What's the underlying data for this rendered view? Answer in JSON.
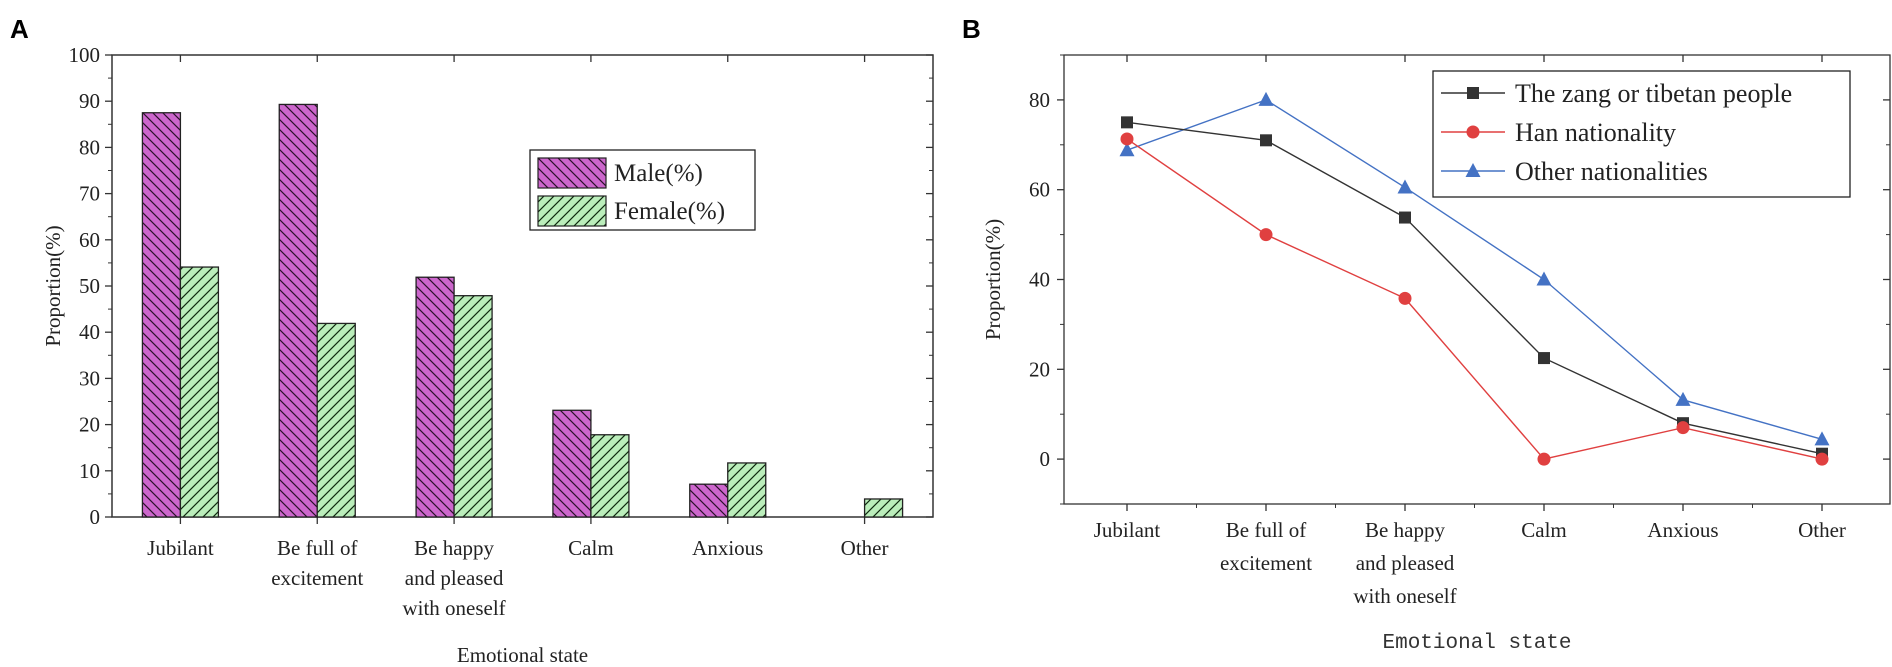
{
  "chart_data": [
    {
      "panel": "A",
      "type": "bar",
      "categories": [
        "Jubilant",
        "Be full of excitement",
        "Be happy and pleased with oneself",
        "Calm",
        "Anxious",
        "Other"
      ],
      "category_lines": [
        [
          "Jubilant"
        ],
        [
          "Be full of",
          "excitement"
        ],
        [
          "Be happy",
          "and pleased",
          "with oneself"
        ],
        [
          "Calm"
        ],
        [
          "Anxious"
        ],
        [
          "Other"
        ]
      ],
      "series": [
        {
          "name": "Male(%)",
          "values": [
            87.5,
            89.3,
            51.9,
            23.1,
            7.1,
            0
          ],
          "color": "#cc66cc"
        },
        {
          "name": "Female(%)",
          "values": [
            54.1,
            41.9,
            47.9,
            17.8,
            11.7,
            3.9
          ],
          "color": "#bbeebb"
        }
      ],
      "xlabel": "Emotional state",
      "ylabel": "Proportion(%)",
      "ylim": [
        0,
        100
      ],
      "yticks": [
        0,
        10,
        20,
        30,
        40,
        50,
        60,
        70,
        80,
        90,
        100
      ],
      "legend": "top-right"
    },
    {
      "panel": "B",
      "type": "line",
      "categories": [
        "Jubilant",
        "Be full of excitement",
        "Be happy and pleased with oneself",
        "Calm",
        "Anxious",
        "Other"
      ],
      "category_lines": [
        [
          "Jubilant"
        ],
        [
          "Be full of",
          "excitement"
        ],
        [
          "Be happy",
          "and pleased",
          "with oneself"
        ],
        [
          "Calm"
        ],
        [
          "Anxious"
        ],
        [
          "Other"
        ]
      ],
      "series": [
        {
          "name": "The zang or tibetan people",
          "values": [
            75.0,
            71.0,
            53.8,
            22.5,
            8.0,
            1.2
          ],
          "color": "#333333",
          "marker": "square"
        },
        {
          "name": "Han nationality",
          "values": [
            71.3,
            50.0,
            35.8,
            0.0,
            7.0,
            0.0
          ],
          "color": "#e04040",
          "marker": "circle"
        },
        {
          "name": "Other nationalities",
          "values": [
            68.8,
            80.0,
            60.5,
            40.0,
            13.2,
            4.4
          ],
          "color": "#4472c4",
          "marker": "triangle"
        }
      ],
      "xlabel": "Emotional state",
      "ylabel": "Proportion(%)",
      "ylim": [
        -10,
        90
      ],
      "yticks": [
        0,
        20,
        40,
        60,
        80
      ],
      "legend": "top-right"
    }
  ],
  "panel_labels": [
    "A",
    "B"
  ]
}
